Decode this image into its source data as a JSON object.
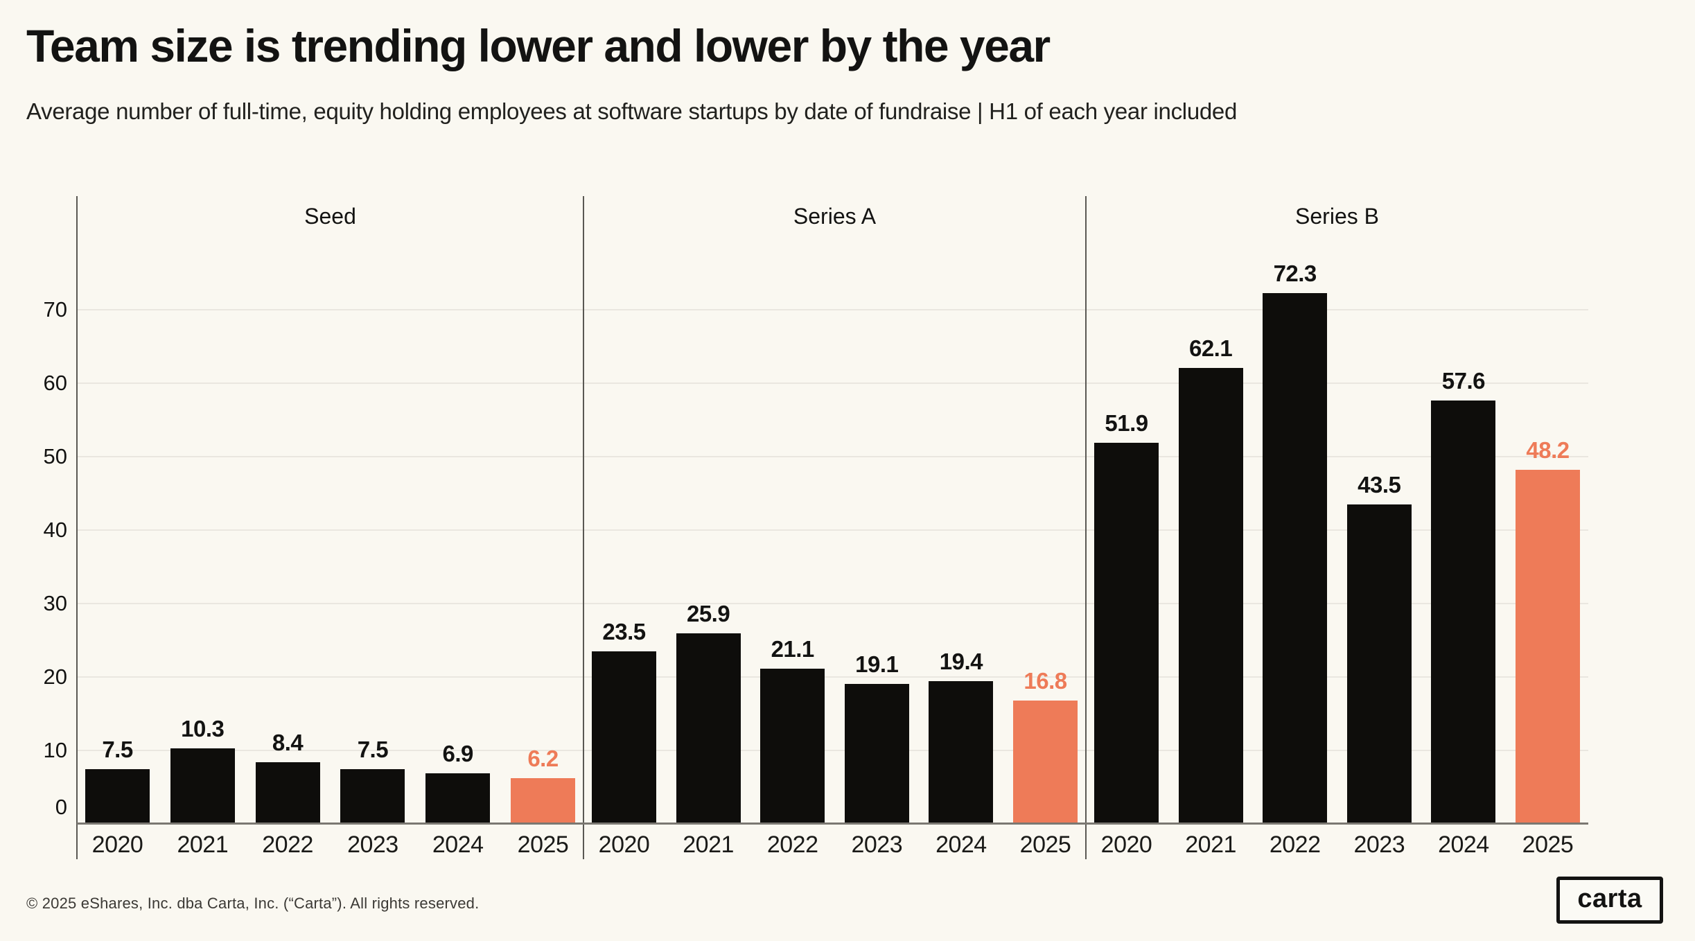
{
  "header": {
    "title": "Team size is trending lower and lower by the year",
    "subtitle": "Average number of full-time, equity holding employees at software startups by date of fundraise | H1 of each year included"
  },
  "footer": {
    "copyright": "© 2025 eShares, Inc. dba Carta, Inc. (“Carta”). All rights reserved.",
    "logo_text": "carta"
  },
  "colors": {
    "background": "#faf8f1",
    "bar": "#0e0d0b",
    "highlight": "#ee7b58",
    "gridline": "#eae7e0",
    "axis": "#7b7872",
    "separator": "#5a5853",
    "text": "#131312"
  },
  "chart_data": {
    "type": "bar",
    "title": "Team size is trending lower and lower by the year",
    "subtitle": "Average number of full-time, equity holding employees at software startups by date of fundraise | H1 of each year included",
    "categories": [
      "2020",
      "2021",
      "2022",
      "2023",
      "2024",
      "2025"
    ],
    "groups": [
      {
        "label": "Seed",
        "values": [
          7.5,
          10.3,
          8.4,
          7.5,
          6.9,
          6.2
        ]
      },
      {
        "label": "Series A",
        "values": [
          23.5,
          25.9,
          21.1,
          19.1,
          19.4,
          16.8
        ]
      },
      {
        "label": "Series B",
        "values": [
          51.9,
          62.1,
          72.3,
          43.5,
          57.6,
          48.2
        ]
      }
    ],
    "highlight_category": "2025",
    "value_labels": true,
    "yticks": [
      0,
      10,
      20,
      30,
      40,
      50,
      60,
      70
    ],
    "ylim": [
      0,
      85
    ],
    "grid": "horizontal",
    "legend": "none"
  }
}
